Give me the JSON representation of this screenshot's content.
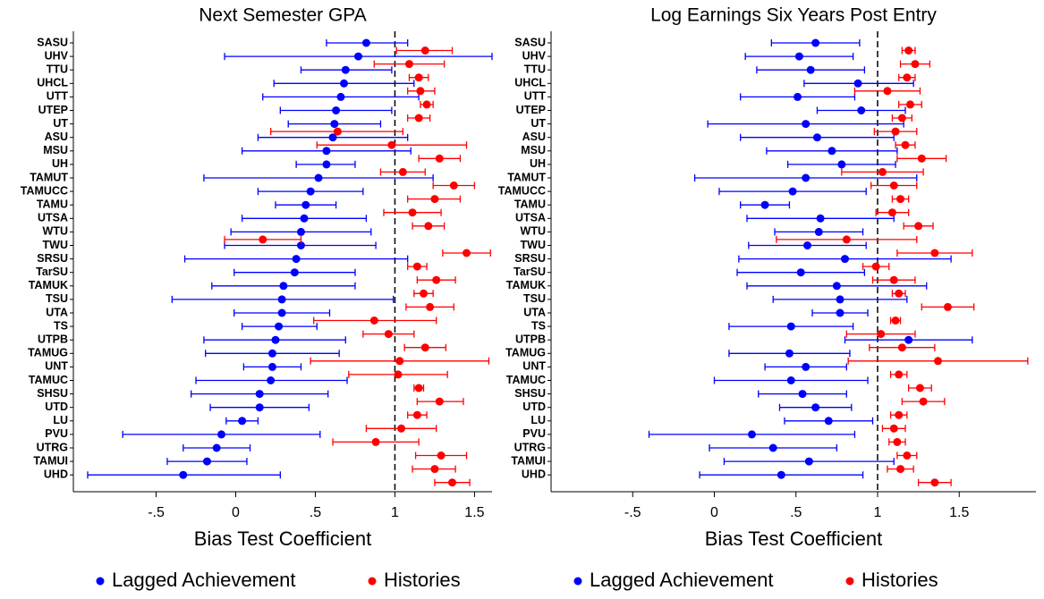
{
  "chart_data": [
    {
      "type": "errorbar",
      "title": "Next Semester GPA",
      "xlabel": "Bias Test Coefficient",
      "categories": [
        "SASU",
        "UHV",
        "TTU",
        "UHCL",
        "UTT",
        "UTEP",
        "UT",
        "ASU",
        "MSU",
        "UH",
        "TAMUT",
        "TAMUCC",
        "TAMU",
        "UTSA",
        "WTU",
        "TWU",
        "SRSU",
        "TarSU",
        "TAMUK",
        "TSU",
        "UTA",
        "TS",
        "UTPB",
        "TAMUG",
        "UNT",
        "TAMUC",
        "SHSU",
        "UTD",
        "LU",
        "PVU",
        "UTRG",
        "TAMUI",
        "UHD"
      ],
      "xlim": [
        -1.02,
        1.61
      ],
      "xticks": [
        {
          "value": -0.5,
          "label": "-.5"
        },
        0,
        {
          "value": 0.5,
          "label": ".5"
        },
        1,
        1.5
      ],
      "reference_line": 1,
      "series": [
        {
          "name": "Lagged Achievement",
          "color": "#0000ff",
          "values": [
            0.82,
            0.77,
            0.69,
            0.68,
            0.66,
            0.63,
            0.62,
            0.61,
            0.57,
            0.57,
            0.52,
            0.47,
            0.44,
            0.43,
            0.41,
            0.41,
            0.38,
            0.37,
            0.3,
            0.29,
            0.29,
            0.27,
            0.25,
            0.23,
            0.23,
            0.22,
            0.15,
            0.15,
            0.04,
            -0.09,
            -0.12,
            -0.18,
            -0.33
          ],
          "lower": [
            0.57,
            -0.07,
            0.41,
            0.24,
            0.17,
            0.28,
            0.33,
            0.14,
            0.04,
            0.38,
            -0.2,
            0.14,
            0.25,
            0.04,
            -0.03,
            -0.07,
            -0.32,
            -0.01,
            -0.15,
            -0.4,
            -0.01,
            0.04,
            -0.2,
            -0.19,
            0.05,
            -0.25,
            -0.28,
            -0.16,
            -0.06,
            -0.71,
            -0.33,
            -0.43,
            -0.93
          ],
          "upper": [
            1.08,
            1.61,
            0.98,
            1.12,
            1.15,
            0.98,
            0.91,
            1.08,
            1.1,
            0.75,
            1.24,
            0.8,
            0.63,
            0.82,
            0.85,
            0.88,
            1.08,
            0.75,
            0.75,
            0.99,
            0.59,
            0.51,
            0.69,
            0.65,
            0.41,
            0.7,
            0.58,
            0.46,
            0.14,
            0.53,
            0.09,
            0.07,
            0.28
          ]
        },
        {
          "name": "Histories",
          "color": "#ff0000",
          "values": [
            1.19,
            1.09,
            1.15,
            1.16,
            1.2,
            1.15,
            0.64,
            0.98,
            1.28,
            1.05,
            1.37,
            1.25,
            1.11,
            1.21,
            0.17,
            1.45,
            1.14,
            1.26,
            1.18,
            1.22,
            0.87,
            0.96,
            1.19,
            1.03,
            1.02,
            1.15,
            1.28,
            1.14,
            1.04,
            0.88,
            1.29,
            1.25,
            1.36
          ],
          "lower": [
            1.01,
            0.87,
            1.09,
            1.08,
            1.16,
            1.08,
            0.22,
            0.51,
            1.15,
            0.91,
            1.24,
            1.08,
            0.93,
            1.11,
            -0.07,
            1.3,
            1.08,
            1.14,
            1.12,
            1.07,
            0.49,
            0.8,
            1.06,
            0.47,
            0.71,
            1.12,
            1.14,
            1.08,
            0.82,
            0.61,
            1.13,
            1.11,
            1.25
          ],
          "upper": [
            1.36,
            1.31,
            1.21,
            1.25,
            1.24,
            1.22,
            1.05,
            1.45,
            1.41,
            1.19,
            1.5,
            1.41,
            1.29,
            1.31,
            0.41,
            1.6,
            1.2,
            1.38,
            1.24,
            1.37,
            1.26,
            1.12,
            1.32,
            1.59,
            1.33,
            1.18,
            1.43,
            1.2,
            1.26,
            1.15,
            1.45,
            1.38,
            1.47
          ]
        }
      ]
    },
    {
      "type": "errorbar",
      "title": "Log Earnings Six Years Post Entry",
      "xlabel": "Bias Test Coefficient",
      "categories": [
        "SASU",
        "UHV",
        "TTU",
        "UHCL",
        "UTT",
        "UTEP",
        "UT",
        "ASU",
        "MSU",
        "UH",
        "TAMUT",
        "TAMUCC",
        "TAMU",
        "UTSA",
        "WTU",
        "TWU",
        "SRSU",
        "TarSU",
        "TAMUK",
        "TSU",
        "UTA",
        "TS",
        "UTPB",
        "TAMUG",
        "UNT",
        "TAMUC",
        "SHSU",
        "UTD",
        "LU",
        "PVU",
        "UTRG",
        "TAMUI",
        "UHD"
      ],
      "xlim": [
        -1.0,
        1.97
      ],
      "xticks": [
        {
          "value": -0.5,
          "label": "-.5"
        },
        0,
        {
          "value": 0.5,
          "label": ".5"
        },
        1,
        1.5
      ],
      "reference_line": 1,
      "series": [
        {
          "name": "Lagged Achievement",
          "color": "#0000ff",
          "values": [
            0.62,
            0.52,
            0.59,
            0.88,
            0.51,
            0.9,
            0.56,
            0.63,
            0.72,
            0.78,
            0.56,
            0.48,
            0.31,
            0.65,
            0.64,
            0.57,
            0.8,
            0.53,
            0.75,
            0.77,
            0.77,
            0.47,
            1.19,
            0.46,
            0.56,
            0.47,
            0.54,
            0.62,
            0.7,
            0.23,
            0.36,
            0.58,
            0.41
          ],
          "lower": [
            0.35,
            0.19,
            0.26,
            0.55,
            0.16,
            0.63,
            -0.04,
            0.16,
            0.32,
            0.45,
            -0.12,
            0.03,
            0.16,
            0.2,
            0.37,
            0.21,
            0.15,
            0.14,
            0.2,
            0.36,
            0.6,
            0.09,
            0.8,
            0.09,
            0.31,
            0.0,
            0.27,
            0.4,
            0.43,
            -0.4,
            -0.03,
            0.06,
            -0.09
          ],
          "upper": [
            0.89,
            0.85,
            0.92,
            1.22,
            0.86,
            1.17,
            1.16,
            1.1,
            1.12,
            1.11,
            1.24,
            0.93,
            0.46,
            1.1,
            0.91,
            0.93,
            1.45,
            0.92,
            1.3,
            1.18,
            0.94,
            0.85,
            1.58,
            0.83,
            0.81,
            0.94,
            0.81,
            0.84,
            0.97,
            0.86,
            0.75,
            1.1,
            0.91
          ]
        },
        {
          "name": "Histories",
          "color": "#ff0000",
          "values": [
            1.19,
            1.23,
            1.18,
            1.06,
            1.2,
            1.15,
            1.11,
            1.17,
            1.27,
            1.03,
            1.1,
            1.14,
            1.09,
            1.25,
            0.81,
            1.35,
            0.99,
            1.1,
            1.13,
            1.43,
            1.11,
            1.02,
            1.15,
            1.37,
            1.13,
            1.26,
            1.28,
            1.13,
            1.1,
            1.12,
            1.18,
            1.14,
            1.35
          ],
          "lower": [
            1.15,
            1.14,
            1.13,
            0.86,
            1.13,
            1.09,
            0.98,
            1.11,
            1.12,
            0.78,
            0.96,
            1.09,
            0.99,
            1.16,
            0.38,
            1.12,
            0.91,
            0.97,
            1.09,
            1.27,
            1.08,
            0.81,
            0.95,
            0.82,
            1.08,
            1.19,
            1.15,
            1.08,
            1.03,
            1.07,
            1.12,
            1.06,
            1.25
          ],
          "upper": [
            1.23,
            1.32,
            1.23,
            1.26,
            1.27,
            1.21,
            1.24,
            1.23,
            1.42,
            1.28,
            1.24,
            1.19,
            1.19,
            1.34,
            1.24,
            1.58,
            1.07,
            1.23,
            1.17,
            1.59,
            1.14,
            1.23,
            1.35,
            1.92,
            1.18,
            1.33,
            1.41,
            1.18,
            1.17,
            1.17,
            1.24,
            1.22,
            1.45
          ]
        }
      ]
    }
  ]
}
